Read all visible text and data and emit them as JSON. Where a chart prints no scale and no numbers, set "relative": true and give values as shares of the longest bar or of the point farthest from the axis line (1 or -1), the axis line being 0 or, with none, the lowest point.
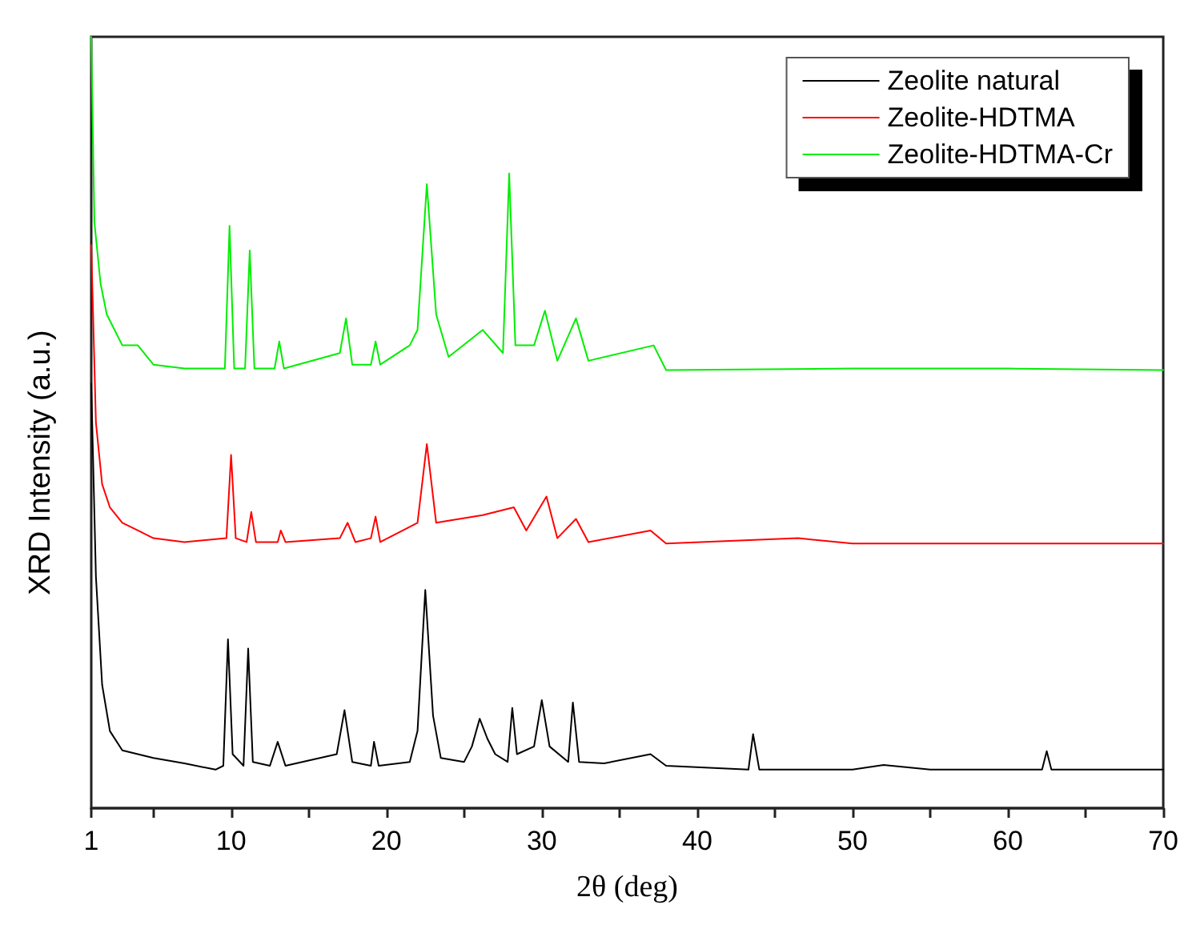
{
  "chart_data": {
    "type": "line",
    "relative": true,
    "xlabel": "2θ (deg)",
    "ylabel": "XRD Intensity (a.u.)",
    "xlim": [
      1,
      70
    ],
    "xticks": [
      1,
      {
        "value": 5,
        "label": null
      },
      10,
      {
        "value": 15,
        "label": null
      },
      20,
      {
        "value": 25,
        "label": null
      },
      30,
      {
        "value": 35,
        "label": null
      },
      40,
      {
        "value": 45,
        "label": null
      },
      50,
      {
        "value": 55,
        "label": null
      },
      60,
      {
        "value": 65,
        "label": null
      },
      70
    ],
    "grid": false,
    "legend": "top right",
    "marker": "none",
    "line_style": "solid",
    "series": [
      {
        "name": "Zeolite natural",
        "color": "#000000",
        "x": [
          1,
          1.3,
          1.7,
          2.2,
          3,
          4,
          5,
          7,
          9,
          9.5,
          9.8,
          10.1,
          10.8,
          11.1,
          11.4,
          12.5,
          13,
          13.5,
          16.8,
          17.3,
          17.8,
          19,
          19.2,
          19.5,
          21.5,
          22,
          22.5,
          23,
          23.5,
          25,
          25.5,
          26,
          26.5,
          27,
          27.8,
          28.1,
          28.4,
          29.5,
          30,
          30.5,
          31.7,
          32,
          32.4,
          34,
          37,
          38,
          43.3,
          43.6,
          44,
          50,
          52,
          55,
          62.2,
          62.5,
          62.8,
          66,
          70
        ],
        "values": [
          0.55,
          0.3,
          0.16,
          0.1,
          0.075,
          0.07,
          0.065,
          0.058,
          0.05,
          0.055,
          0.219,
          0.07,
          0.055,
          0.207,
          0.06,
          0.055,
          0.086,
          0.055,
          0.07,
          0.127,
          0.06,
          0.055,
          0.086,
          0.055,
          0.06,
          0.1,
          0.283,
          0.12,
          0.065,
          0.06,
          0.08,
          0.116,
          0.09,
          0.07,
          0.06,
          0.13,
          0.07,
          0.08,
          0.14,
          0.08,
          0.06,
          0.137,
          0.06,
          0.058,
          0.07,
          0.055,
          0.05,
          0.096,
          0.05,
          0.05,
          0.056,
          0.05,
          0.05,
          0.074,
          0.05,
          0.05,
          0.05
        ]
      },
      {
        "name": "Zeolite-HDTMA",
        "color": "#ff0000",
        "x": [
          1,
          1.3,
          1.7,
          2.2,
          3,
          4,
          5,
          7,
          9.7,
          10,
          10.3,
          11,
          11.3,
          11.6,
          13,
          13.2,
          13.5,
          17,
          17.5,
          18,
          19,
          19.3,
          19.6,
          22,
          22.6,
          23.2,
          26.2,
          28.2,
          29,
          30.3,
          31,
          32.2,
          33,
          37,
          38,
          46.5,
          50,
          60,
          70
        ],
        "values": [
          0.73,
          0.5,
          0.42,
          0.39,
          0.37,
          0.36,
          0.35,
          0.345,
          0.35,
          0.458,
          0.35,
          0.345,
          0.384,
          0.345,
          0.345,
          0.36,
          0.345,
          0.35,
          0.37,
          0.345,
          0.35,
          0.378,
          0.345,
          0.37,
          0.472,
          0.37,
          0.38,
          0.39,
          0.36,
          0.404,
          0.35,
          0.375,
          0.345,
          0.36,
          0.343,
          0.35,
          0.343,
          0.343,
          0.343
        ]
      },
      {
        "name": "Zeolite-HDTMA-Cr",
        "color": "#00ee00",
        "x": [
          1,
          1.2,
          1.6,
          2,
          3,
          4,
          5,
          7,
          9.6,
          9.9,
          10.2,
          10.9,
          11.2,
          11.5,
          12.8,
          13.1,
          13.4,
          17,
          17.4,
          17.8,
          19,
          19.3,
          19.6,
          21.5,
          22,
          22.6,
          23.2,
          24,
          26.2,
          27.5,
          27.9,
          28.3,
          29.5,
          30.2,
          31,
          32.2,
          33,
          37.2,
          38,
          50,
          60,
          70
        ],
        "values": [
          1,
          0.76,
          0.68,
          0.64,
          0.6,
          0.6,
          0.575,
          0.57,
          0.57,
          0.755,
          0.57,
          0.57,
          0.723,
          0.57,
          0.57,
          0.605,
          0.57,
          0.59,
          0.635,
          0.575,
          0.575,
          0.605,
          0.575,
          0.6,
          0.62,
          0.809,
          0.64,
          0.585,
          0.62,
          0.59,
          0.823,
          0.6,
          0.6,
          0.645,
          0.58,
          0.635,
          0.58,
          0.6,
          0.568,
          0.57,
          0.57,
          0.568
        ]
      }
    ]
  }
}
